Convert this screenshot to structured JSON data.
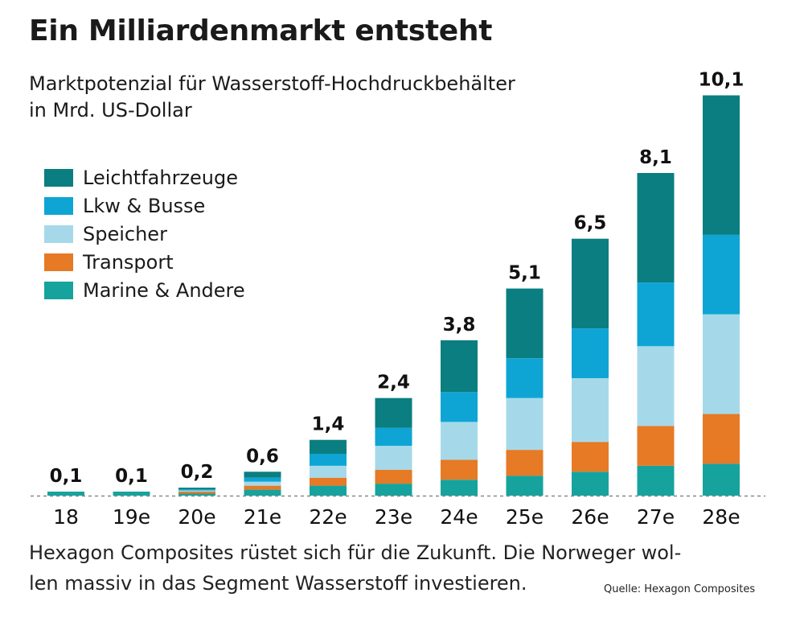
{
  "title": "Ein Milliardenmarkt entsteht",
  "subtitle_line1": "Marktpotenzial für Wasserstoff-Hochdruckbehälter",
  "subtitle_line2": "in Mrd. US-Dollar",
  "caption_line1": "Hexagon Composites rüstet sich für die Zukunft. Die Norweger wol-",
  "caption_line2": "len massiv in das Segment Wasserstoff investieren.",
  "source": "Quelle: Hexagon Composites",
  "chart_data": {
    "type": "bar",
    "stacked": true,
    "categories": [
      "18",
      "19e",
      "20e",
      "21e",
      "22e",
      "23e",
      "24e",
      "25e",
      "26e",
      "27e",
      "28e"
    ],
    "totals": [
      "0,1",
      "0,1",
      "0,2",
      "0,6",
      "1,4",
      "2,4",
      "3,8",
      "5,1",
      "6,5",
      "8,1",
      "10,1"
    ],
    "series": [
      {
        "name": "Marine & Andere",
        "color": "#16a39e",
        "values": [
          0.1,
          0.1,
          0.05,
          0.15,
          0.25,
          0.3,
          0.4,
          0.5,
          0.6,
          0.75,
          0.8
        ]
      },
      {
        "name": "Transport",
        "color": "#e67a25",
        "values": [
          0.0,
          0.0,
          0.05,
          0.1,
          0.2,
          0.35,
          0.5,
          0.65,
          0.75,
          1.0,
          1.25
        ]
      },
      {
        "name": "Speicher",
        "color": "#a5d9ea",
        "values": [
          0.0,
          0.0,
          0.03,
          0.1,
          0.3,
          0.6,
          0.95,
          1.3,
          1.6,
          2.0,
          2.5
        ]
      },
      {
        "name": "Lkw & Busse",
        "color": "#0ea5d4",
        "values": [
          0.0,
          0.0,
          0.03,
          0.1,
          0.3,
          0.45,
          0.75,
          1.0,
          1.25,
          1.6,
          2.0
        ]
      },
      {
        "name": "Leichtfahrzeuge",
        "color": "#0a7e80",
        "values": [
          0.0,
          0.0,
          0.04,
          0.15,
          0.35,
          0.75,
          1.3,
          1.75,
          2.25,
          2.75,
          3.5
        ]
      }
    ],
    "legend_order": [
      "Leichtfahrzeuge",
      "Lkw & Busse",
      "Speicher",
      "Transport",
      "Marine & Andere"
    ],
    "ylim": [
      0,
      10.1
    ],
    "xlabel": "",
    "ylabel": "",
    "grid": false,
    "legend_position": "top-left",
    "baseline_style": "dashed"
  }
}
